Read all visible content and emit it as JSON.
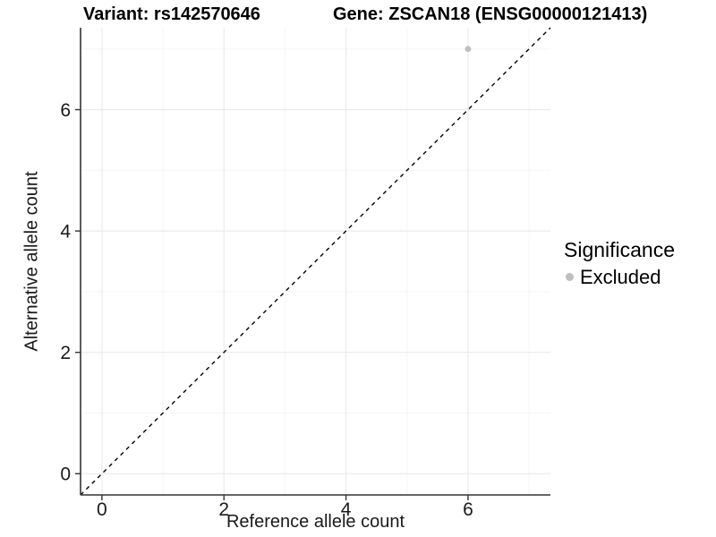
{
  "titles": {
    "variant": "Variant: rs142570646",
    "gene": "Gene: ZSCAN18 (ENSG00000121413)"
  },
  "legend": {
    "title": "Significance",
    "items": [
      {
        "label": "Excluded",
        "color": "#bebebe",
        "marker": "circle-icon"
      }
    ]
  },
  "chart_data": {
    "type": "scatter",
    "title": "Variant: rs142570646 | Gene: ZSCAN18 (ENSG00000121413)",
    "xlabel": "Reference allele count",
    "ylabel": "Alternative allele count",
    "xlim": [
      -0.35,
      7.35
    ],
    "ylim": [
      -0.35,
      7.35
    ],
    "x_ticks": [
      0,
      2,
      4,
      6
    ],
    "y_ticks": [
      0,
      2,
      4,
      6
    ],
    "x_minor_ticks": [
      1,
      3,
      5,
      7
    ],
    "y_minor_ticks": [
      1,
      3,
      5,
      7
    ],
    "grid": true,
    "legend_position": "right",
    "series": [
      {
        "name": "Excluded",
        "color": "#bebebe",
        "points": [
          {
            "x": 6,
            "y": 7
          }
        ]
      }
    ],
    "reference_line": {
      "equation": "y = x",
      "style": "dashed",
      "color": "#000000"
    }
  },
  "style": {
    "background": "#ffffff",
    "grid_major_color": "#ebebeb",
    "grid_minor_color": "#f5f5f5",
    "axis_line_color": "#333333",
    "tick_color": "#333333",
    "tick_label_color": "#1a1a1a",
    "point_color": "#bebebe"
  }
}
